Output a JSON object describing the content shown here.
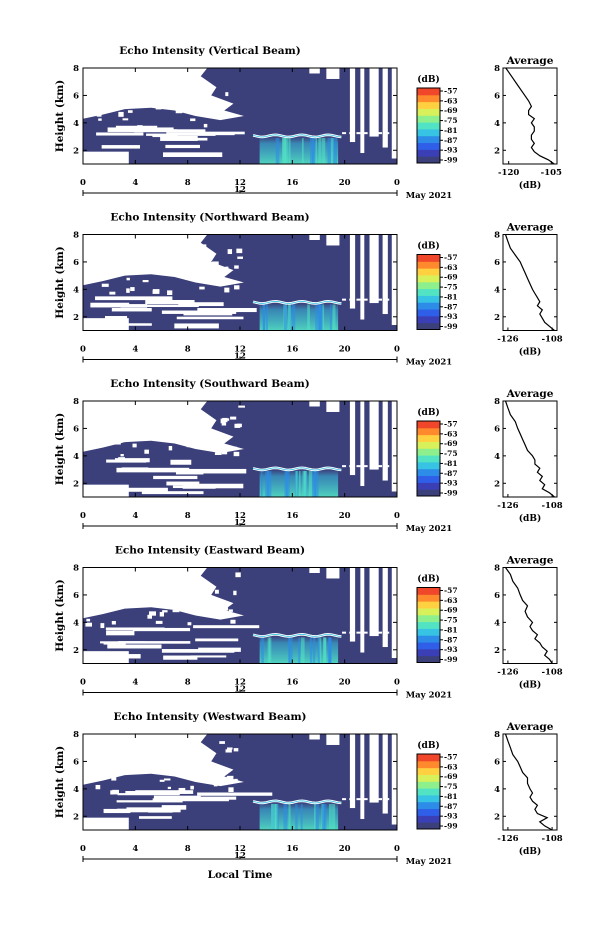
{
  "figure": {
    "xlabel": "Local Time",
    "date_label": "May 2021",
    "colorbar_unit": "(dB)",
    "colorbar_ticks": [
      "-57",
      "-63",
      "-69",
      "-75",
      "-81",
      "-87",
      "-93",
      "-99"
    ],
    "colorbar_colors": [
      "#3b3f7a",
      "#3a3fb5",
      "#2f5fe8",
      "#2c8ce8",
      "#37c3e3",
      "#52e3c4",
      "#8ef08c",
      "#d8f05a",
      "#ffd040",
      "#ff8a2e",
      "#f0462a"
    ],
    "background_color": "#3b3f7a",
    "gap_color": "#ffffff"
  },
  "chart_data": [
    {
      "type": "heatmap",
      "title": "Echo Intensity (Vertical Beam)",
      "ylabel": "Height (km)",
      "x_ticks": [
        "0",
        "4",
        "8",
        "12",
        "16",
        "20",
        "0"
      ],
      "x_range": [
        0,
        24
      ],
      "y_ticks": [
        "2",
        "4",
        "6",
        "8"
      ],
      "y_range": [
        1,
        8
      ],
      "secondary_tick": "12",
      "colorbar_range": [
        -99,
        -57
      ],
      "profile": {
        "title": "Average",
        "xlabel": "(dB)",
        "x_ticks": [
          "-120",
          "-105"
        ],
        "x_range": [
          -122,
          -103
        ],
        "y_ticks": [
          "2",
          "4",
          "6",
          "8"
        ],
        "y_range": [
          1,
          8
        ],
        "x": [
          -104,
          -106,
          -109,
          -111,
          -112,
          -111,
          -112,
          -112,
          -111,
          -111,
          -112,
          -111,
          -113,
          -113,
          -112,
          -113,
          -115,
          -117,
          -119,
          -121
        ],
        "y": [
          1.0,
          1.3,
          1.6,
          1.9,
          2.2,
          2.5,
          2.8,
          3.1,
          3.4,
          3.7,
          4.0,
          4.3,
          4.6,
          4.9,
          5.2,
          5.6,
          6.2,
          6.8,
          7.4,
          8.0
        ]
      }
    },
    {
      "type": "heatmap",
      "title": "Echo Intensity (Northward Beam)",
      "ylabel": "Height (km)",
      "x_ticks": [
        "0",
        "4",
        "8",
        "12",
        "16",
        "20",
        "0"
      ],
      "x_range": [
        0,
        24
      ],
      "y_ticks": [
        "2",
        "4",
        "6",
        "8"
      ],
      "y_range": [
        1,
        8
      ],
      "secondary_tick": "12",
      "colorbar_range": [
        -99,
        -57
      ],
      "profile": {
        "title": "Average",
        "xlabel": "(dB)",
        "x_ticks": [
          "-126",
          "-108"
        ],
        "x_range": [
          -128,
          -106
        ],
        "y_ticks": [
          "2",
          "4",
          "6",
          "8"
        ],
        "y_range": [
          1,
          8
        ],
        "x": [
          -107,
          -109,
          -111,
          -112,
          -113,
          -112,
          -114,
          -113,
          -114,
          -115,
          -116,
          -117,
          -118,
          -119,
          -120,
          -121,
          -123,
          -125,
          -126,
          -127
        ],
        "y": [
          1.0,
          1.3,
          1.6,
          1.9,
          2.2,
          2.5,
          2.8,
          3.1,
          3.4,
          3.7,
          4.0,
          4.4,
          4.8,
          5.2,
          5.6,
          6.0,
          6.5,
          7.0,
          7.5,
          8.0
        ]
      }
    },
    {
      "type": "heatmap",
      "title": "Echo Intensity (Southward Beam)",
      "ylabel": "Height (km)",
      "x_ticks": [
        "0",
        "4",
        "8",
        "12",
        "16",
        "20",
        "0"
      ],
      "x_range": [
        0,
        24
      ],
      "y_ticks": [
        "2",
        "4",
        "6",
        "8"
      ],
      "y_range": [
        1,
        8
      ],
      "secondary_tick": "12",
      "colorbar_range": [
        -99,
        -57
      ],
      "profile": {
        "title": "Average",
        "xlabel": "(dB)",
        "x_ticks": [
          "-126",
          "-108"
        ],
        "x_range": [
          -128,
          -106
        ],
        "y_ticks": [
          "2",
          "4",
          "6",
          "8"
        ],
        "y_range": [
          1,
          8
        ],
        "x": [
          -107,
          -109,
          -112,
          -111,
          -113,
          -112,
          -114,
          -113,
          -115,
          -115,
          -116,
          -118,
          -119,
          -120,
          -121,
          -122,
          -123,
          -125,
          -126,
          -127
        ],
        "y": [
          1.0,
          1.3,
          1.6,
          1.9,
          2.2,
          2.5,
          2.8,
          3.1,
          3.4,
          3.7,
          4.0,
          4.4,
          4.8,
          5.2,
          5.6,
          6.0,
          6.5,
          7.0,
          7.5,
          8.0
        ]
      }
    },
    {
      "type": "heatmap",
      "title": "Echo Intensity (Eastward Beam)",
      "ylabel": "Height (km)",
      "x_ticks": [
        "0",
        "4",
        "8",
        "12",
        "16",
        "20",
        "0"
      ],
      "x_range": [
        0,
        24
      ],
      "y_ticks": [
        "2",
        "4",
        "6",
        "8"
      ],
      "y_range": [
        1,
        8
      ],
      "secondary_tick": "12",
      "colorbar_range": [
        -99,
        -57
      ],
      "profile": {
        "title": "Average",
        "xlabel": "(dB)",
        "x_ticks": [
          "-126",
          "-108"
        ],
        "x_range": [
          -128,
          -106
        ],
        "y_ticks": [
          "2",
          "4",
          "6",
          "8"
        ],
        "y_range": [
          1,
          8
        ],
        "x": [
          -108,
          -109,
          -111,
          -110,
          -112,
          -113,
          -115,
          -114,
          -116,
          -117,
          -116,
          -118,
          -119,
          -118,
          -120,
          -121,
          -122,
          -124,
          -125,
          -127
        ],
        "y": [
          1.0,
          1.3,
          1.6,
          1.9,
          2.2,
          2.5,
          2.8,
          3.1,
          3.4,
          3.7,
          4.0,
          4.4,
          4.8,
          5.2,
          5.6,
          6.0,
          6.5,
          7.0,
          7.5,
          8.0
        ]
      }
    },
    {
      "type": "heatmap",
      "title": "Echo Intensity (Westward Beam)",
      "ylabel": "Height (km)",
      "x_ticks": [
        "0",
        "4",
        "8",
        "12",
        "16",
        "20",
        "0"
      ],
      "x_range": [
        0,
        24
      ],
      "y_ticks": [
        "2",
        "4",
        "6",
        "8"
      ],
      "y_range": [
        1,
        8
      ],
      "secondary_tick": "12",
      "colorbar_range": [
        -99,
        -57
      ],
      "profile": {
        "title": "Average",
        "xlabel": "(dB)",
        "x_ticks": [
          "-126",
          "-108"
        ],
        "x_range": [
          -128,
          -106
        ],
        "y_ticks": [
          "2",
          "4",
          "6",
          "8"
        ],
        "y_range": [
          1,
          8
        ],
        "x": [
          -108,
          -111,
          -113,
          -110,
          -114,
          -115,
          -114,
          -116,
          -117,
          -116,
          -117,
          -118,
          -118,
          -120,
          -121,
          -122,
          -124,
          -125,
          -126,
          -127
        ],
        "y": [
          1.0,
          1.3,
          1.6,
          1.9,
          2.2,
          2.5,
          2.8,
          3.1,
          3.4,
          3.7,
          4.0,
          4.4,
          4.8,
          5.2,
          5.6,
          6.0,
          6.5,
          7.0,
          7.5,
          8.0
        ]
      }
    }
  ]
}
